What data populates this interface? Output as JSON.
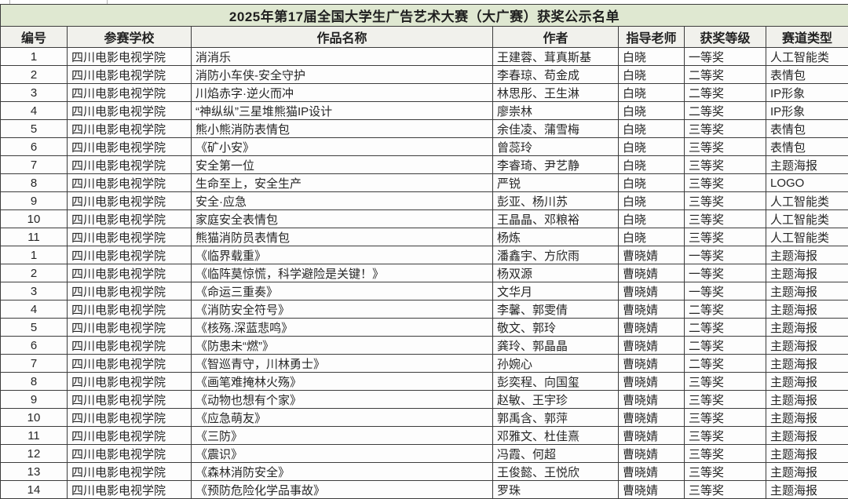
{
  "page": {
    "title": "2025年第17届全国大学生广告艺术大赛（大广赛）获奖公示名单"
  },
  "colors": {
    "title_row_bg": "#dfe8d1",
    "header_row_bg": "#f1f1ec",
    "grid_line": "#3c3c3c",
    "text": "#262626"
  },
  "table": {
    "columns": [
      "编号",
      "参赛学校",
      "作品名称",
      "作者",
      "指导老师",
      "获奖等级",
      "赛道类型"
    ],
    "rows": [
      [
        "1",
        "四川电影电视学院",
        "消消乐",
        "王建蓉、茸真斯基",
        "白晓",
        "一等奖",
        "人工智能类"
      ],
      [
        "2",
        "四川电影电视学院",
        "消防小车侠-安全守护",
        "李春琼、苟金成",
        "白晓",
        "二等奖",
        "表情包"
      ],
      [
        "3",
        "四川电影电视学院",
        "川焰赤字·逆火而冲",
        "林思彤、王生淋",
        "白晓",
        "二等奖",
        "IP形象"
      ],
      [
        "4",
        "四川电影电视学院",
        "“神纵纵”三星堆熊猫IP设计",
        "廖崇林",
        "白晓",
        "二等奖",
        "IP形象"
      ],
      [
        "5",
        "四川电影电视学院",
        "熊小熊消防表情包",
        "余佳凌、蒲雪梅",
        "白晓",
        "三等奖",
        "表情包"
      ],
      [
        "6",
        "四川电影电视学院",
        "《矿小安》",
        "曾蕊玲",
        "白晓",
        "三等奖",
        "表情包"
      ],
      [
        "7",
        "四川电影电视学院",
        "安全第一位",
        "李睿琦、尹艺静",
        "白晓",
        "三等奖",
        "主题海报"
      ],
      [
        "8",
        "四川电影电视学院",
        "生命至上，安全生产",
        "严锐",
        "白晓",
        "三等奖",
        "LOGO"
      ],
      [
        "9",
        "四川电影电视学院",
        "安全·应急",
        "彭亚、杨川苏",
        "白晓",
        "三等奖",
        "人工智能类"
      ],
      [
        "10",
        "四川电影电视学院",
        "家庭安全表情包",
        "王晶晶、邓粮裕",
        "白晓",
        "三等奖",
        "人工智能类"
      ],
      [
        "11",
        "四川电影电视学院",
        "熊猫消防员表情包",
        "杨炼",
        "白晓",
        "三等奖",
        "人工智能类"
      ],
      [
        "1",
        "四川电影电视学院",
        "《临界载重》",
        "潘鑫宇、方欣雨",
        "曹晓婧",
        "一等奖",
        "主题海报"
      ],
      [
        "2",
        "四川电影电视学院",
        "《临阵莫惊慌，科学避险是关键！》",
        "杨双源",
        "曹晓婧",
        "一等奖",
        "主题海报"
      ],
      [
        "3",
        "四川电影电视学院",
        "《命运三重奏》",
        "文华月",
        "曹晓婧",
        "一等奖",
        "主题海报"
      ],
      [
        "4",
        "四川电影电视学院",
        "《消防安全符号》",
        "李馨、郭雯倩",
        "曹晓婧",
        "二等奖",
        "主题海报"
      ],
      [
        "5",
        "四川电影电视学院",
        "《核殇.深蓝悲鸣》",
        "敬文、郭玲",
        "曹晓婧",
        "二等奖",
        "主题海报"
      ],
      [
        "6",
        "四川电影电视学院",
        "《防患未“燃”》",
        "龚玲、郭晶晶",
        "曹晓婧",
        "二等奖",
        "主题海报"
      ],
      [
        "7",
        "四川电影电视学院",
        "《智巡青守，川林勇士》",
        "孙婉心",
        "曹晓婧",
        "二等奖",
        "主题海报"
      ],
      [
        "8",
        "四川电影电视学院",
        "《画笔难掩林火殇》",
        "彭奕程、向国玺",
        "曹晓婧",
        "三等奖",
        "主题海报"
      ],
      [
        "9",
        "四川电影电视学院",
        "《动物也想有个家》",
        "赵敏、王宇珍",
        "曹晓婧",
        "三等奖",
        "主题海报"
      ],
      [
        "10",
        "四川电影电视学院",
        "《应急萌友》",
        "郭禹含、郭萍",
        "曹晓婧",
        "三等奖",
        "主题海报"
      ],
      [
        "11",
        "四川电影电视学院",
        "《三防》",
        "邓雅文、杜佳熹",
        "曹晓婧",
        "三等奖",
        "主题海报"
      ],
      [
        "12",
        "四川电影电视学院",
        "《震识》",
        "冯霞、何超",
        "曹晓婧",
        "三等奖",
        "主题海报"
      ],
      [
        "13",
        "四川电影电视学院",
        "《森林消防安全》",
        "王俊懿、王悦欣",
        "曹晓婧",
        "三等奖",
        "主题海报"
      ],
      [
        "14",
        "四川电影电视学院",
        "《预防危险化学品事故》",
        "罗珠",
        "曹晓婧",
        "三等奖",
        "主题海报"
      ]
    ]
  }
}
